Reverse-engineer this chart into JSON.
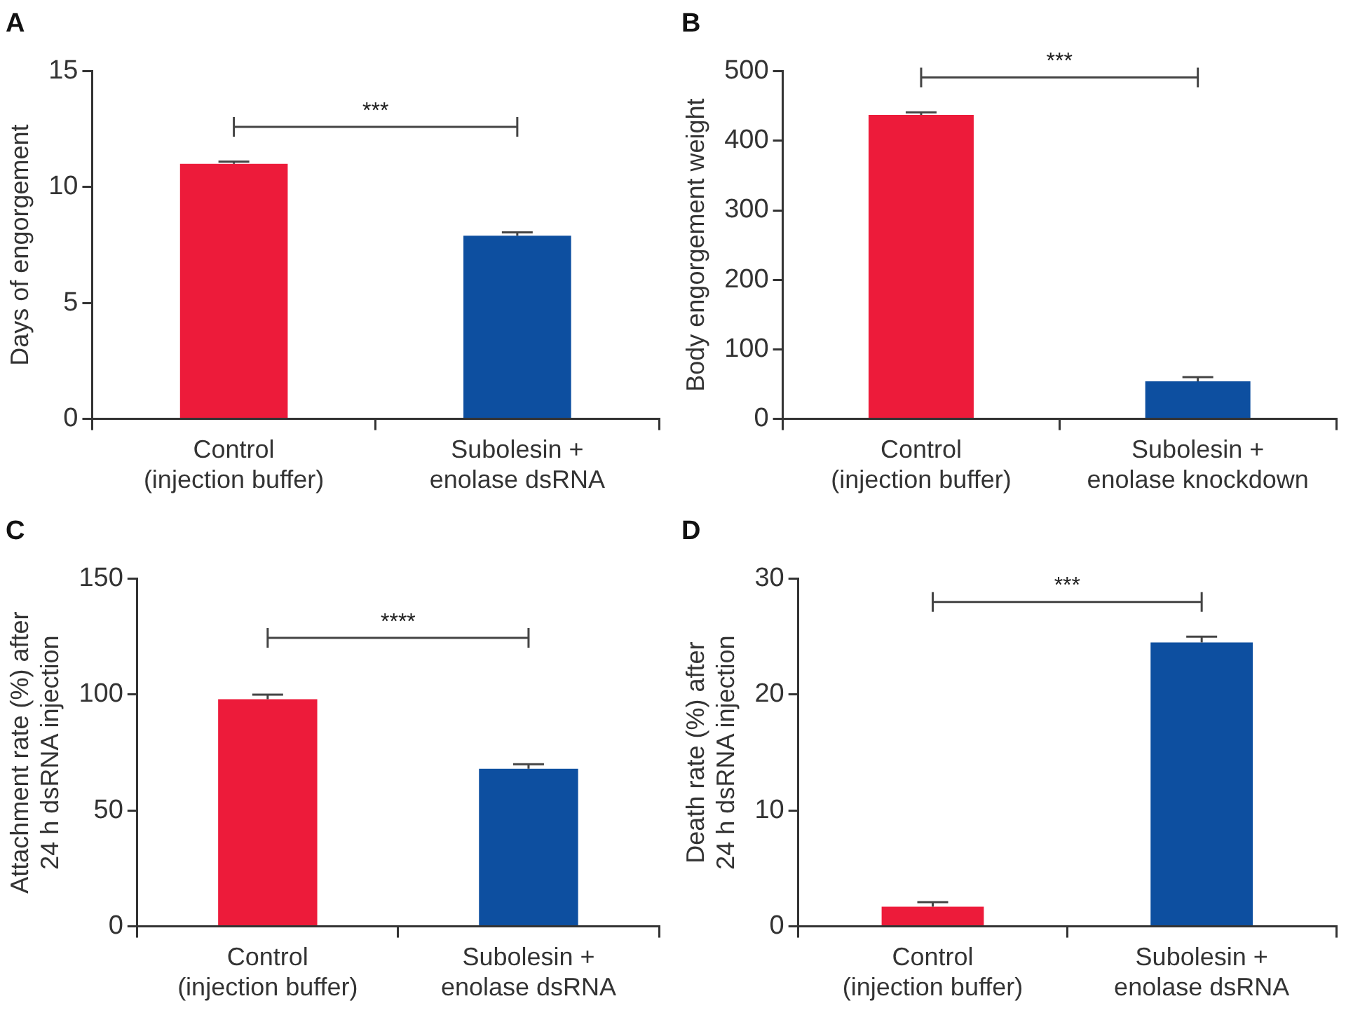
{
  "chart_data": [
    {
      "type": "bar",
      "title": "A",
      "ylabel": "Days of engorgement",
      "categories": [
        "Control\n(injection buffer)",
        "Subolesin +\nenolase dsRNA"
      ],
      "values": [
        11.0,
        7.9
      ],
      "errors": [
        0.1,
        0.15
      ],
      "colors": [
        "#ed1b3a",
        "#0d4fa0"
      ],
      "ylim": [
        0,
        15
      ],
      "yticks": [
        0,
        5,
        10,
        15
      ],
      "grid": false,
      "annotations": [
        "***"
      ]
    },
    {
      "type": "bar",
      "title": "B",
      "ylabel": "Body engorgement weight",
      "categories": [
        "Control\n(injection buffer)",
        "Subolesin +\nenolase knockdown"
      ],
      "values": [
        437,
        54
      ],
      "errors": [
        4,
        6
      ],
      "colors": [
        "#ed1b3a",
        "#0d4fa0"
      ],
      "ylim": [
        0,
        500
      ],
      "yticks": [
        0,
        100,
        200,
        300,
        400,
        500
      ],
      "grid": false,
      "annotations": [
        "***"
      ]
    },
    {
      "type": "bar",
      "title": "C",
      "ylabel": "Attachment rate (%) after\n24 h dsRNA injection",
      "categories": [
        "Control\n(injection buffer)",
        "Subolesin +\nenolase dsRNA"
      ],
      "values": [
        98,
        68
      ],
      "errors": [
        2,
        2
      ],
      "colors": [
        "#ed1b3a",
        "#0d4fa0"
      ],
      "ylim": [
        0,
        150
      ],
      "yticks": [
        0,
        50,
        100,
        150
      ],
      "grid": false,
      "annotations": [
        "****"
      ]
    },
    {
      "type": "bar",
      "title": "D",
      "ylabel": "Death rate (%) after\n24 h dsRNA injection",
      "categories": [
        "Control\n(injection buffer)",
        "Subolesin +\nenolase dsRNA"
      ],
      "values": [
        1.7,
        24.5
      ],
      "errors": [
        0.4,
        0.5
      ],
      "colors": [
        "#ed1b3a",
        "#0d4fa0"
      ],
      "ylim": [
        0,
        30
      ],
      "yticks": [
        0,
        10,
        20,
        30
      ],
      "grid": false,
      "annotations": [
        "***"
      ]
    }
  ]
}
